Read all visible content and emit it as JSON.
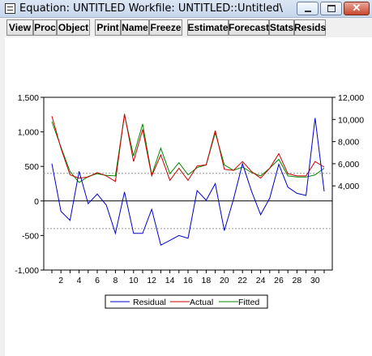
{
  "window": {
    "title": "Equation: UNTITLED    Workfile: UNTITLED::Untitled\\",
    "close_glyph": "✕"
  },
  "toolbar": {
    "buttons": [
      "View",
      "Proc",
      "Object",
      "Print",
      "Name",
      "Freeze",
      "Estimate",
      "Forecast",
      "Stats",
      "Resids"
    ]
  },
  "chart_data": {
    "type": "line",
    "x": [
      1,
      2,
      3,
      4,
      5,
      6,
      7,
      8,
      9,
      10,
      11,
      12,
      13,
      14,
      15,
      16,
      17,
      18,
      19,
      20,
      21,
      22,
      23,
      24,
      25,
      26,
      27,
      28,
      29,
      30,
      31
    ],
    "x_ticks": [
      2,
      4,
      6,
      8,
      10,
      12,
      14,
      16,
      18,
      20,
      22,
      24,
      26,
      28,
      30
    ],
    "left_axis": {
      "ylim": [
        -1000,
        1500
      ],
      "ticks": [
        -1000,
        -500,
        0,
        500,
        1000,
        1500
      ],
      "tick_labels": [
        "-1,000",
        "-500",
        "0",
        "500",
        "1,000",
        "1,500"
      ],
      "dotted_lines": [
        -400,
        400
      ]
    },
    "right_axis": {
      "ylim": [
        -3600,
        12000
      ],
      "ticks": [
        4000,
        6000,
        8000,
        10000,
        12000
      ],
      "tick_labels": [
        "4,000",
        "6,000",
        "8,000",
        "10,000",
        "12,000"
      ]
    },
    "series": [
      {
        "name": "Residual",
        "axis": "left",
        "color": "#0000cc",
        "values": [
          540,
          -150,
          -280,
          430,
          -40,
          100,
          -60,
          -470,
          130,
          -470,
          -470,
          -120,
          -640,
          -570,
          -500,
          -540,
          150,
          10,
          250,
          -430,
          20,
          540,
          140,
          -200,
          40,
          530,
          200,
          110,
          80,
          1200,
          140
        ]
      },
      {
        "name": "Actual",
        "axis": "right",
        "color": "#cc0000",
        "values": [
          10300,
          7400,
          5000,
          4700,
          4800,
          5200,
          4900,
          4400,
          10500,
          6200,
          9100,
          4900,
          6800,
          4500,
          5600,
          4500,
          5800,
          5900,
          9000,
          5500,
          5400,
          6200,
          5300,
          4700,
          5600,
          6900,
          5100,
          4900,
          4900,
          6200,
          5700
        ]
      },
      {
        "name": "Fitted",
        "axis": "right",
        "color": "#008800",
        "values": [
          9800,
          7500,
          5300,
          4300,
          4850,
          5100,
          4950,
          4900,
          10400,
          6700,
          9600,
          5000,
          7400,
          5100,
          6100,
          5000,
          5650,
          5900,
          8800,
          5900,
          5400,
          5700,
          5200,
          4900,
          5600,
          6400,
          4900,
          4800,
          4800,
          5000,
          5600
        ]
      }
    ],
    "legend_position": "bottom-center"
  }
}
